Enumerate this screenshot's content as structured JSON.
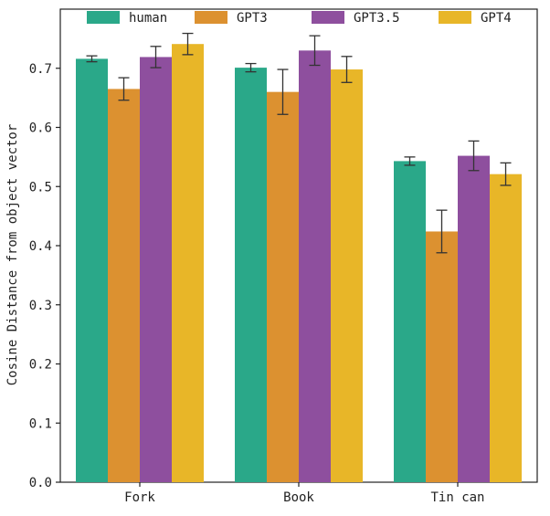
{
  "chart_data": {
    "type": "bar",
    "categories": [
      "Fork",
      "Book",
      "Tin can"
    ],
    "series": [
      {
        "name": "human",
        "color": "#2aa889",
        "values": [
          0.716,
          0.701,
          0.543
        ],
        "errors": [
          0.005,
          0.007,
          0.007
        ]
      },
      {
        "name": "GPT3",
        "color": "#dc9130",
        "values": [
          0.665,
          0.66,
          0.424
        ],
        "errors": [
          0.019,
          0.038,
          0.036
        ]
      },
      {
        "name": "GPT3.5",
        "color": "#8e4f9e",
        "values": [
          0.719,
          0.73,
          0.552
        ],
        "errors": [
          0.018,
          0.025,
          0.025
        ]
      },
      {
        "name": "GPT4",
        "color": "#e8b628",
        "values": [
          0.741,
          0.698,
          0.521
        ],
        "errors": [
          0.018,
          0.022,
          0.019
        ]
      }
    ],
    "title": "",
    "xlabel": "",
    "ylabel": "Cosine Distance from object vector",
    "ylim": [
      0,
      0.8
    ],
    "yticks": [
      0.0,
      0.1,
      0.2,
      0.3,
      0.4,
      0.5,
      0.6,
      0.7
    ],
    "ytick_labels": [
      "0.0",
      "0.1",
      "0.2",
      "0.3",
      "0.4",
      "0.5",
      "0.6",
      "0.7"
    ],
    "grid": false,
    "legend_position": "top"
  }
}
